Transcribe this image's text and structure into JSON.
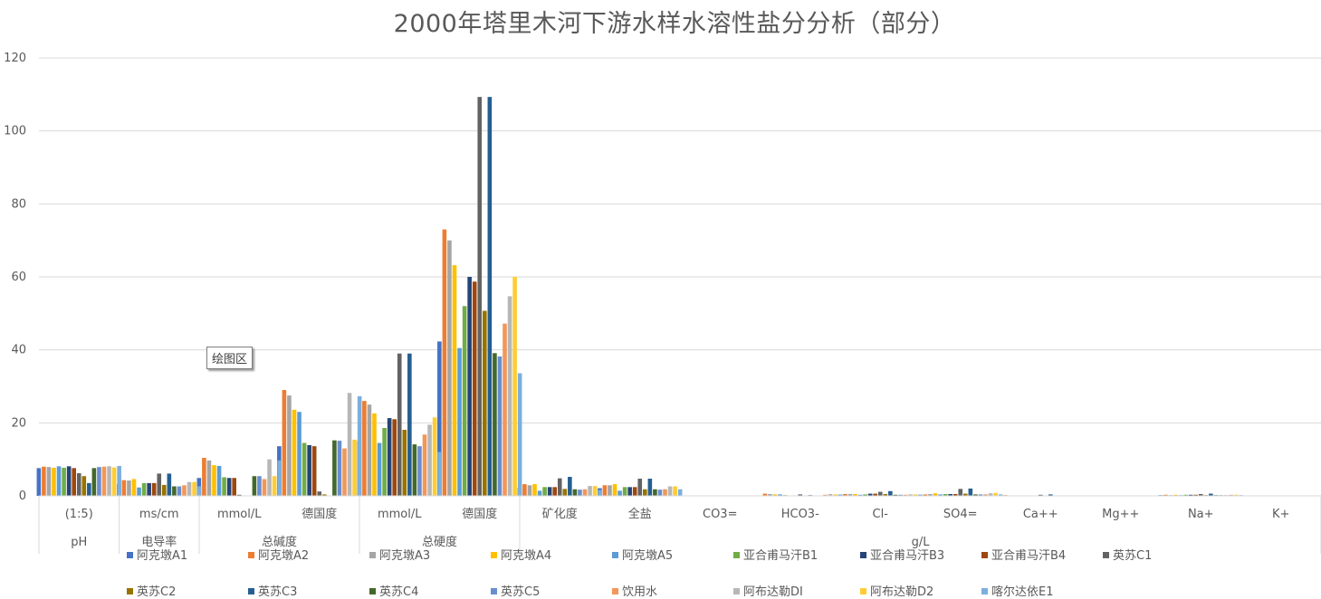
{
  "chart_data": {
    "type": "bar",
    "title": "2000年塔里木河下游水样水溶性盐分分析（部分）",
    "xlabel": "",
    "ylabel": "",
    "ylim": [
      0,
      120
    ],
    "yticks": [
      0,
      20,
      40,
      60,
      80,
      100,
      120
    ],
    "grid": true,
    "legend_position": "bottom",
    "categories": [
      {
        "sub": "(1:5)",
        "group": "pH"
      },
      {
        "sub": "ms/cm",
        "group": "电导率"
      },
      {
        "sub": "mmol/L",
        "group": "总碱度"
      },
      {
        "sub": "德国度",
        "group": "总碱度"
      },
      {
        "sub": "mmol/L",
        "group": "总硬度"
      },
      {
        "sub": "德国度",
        "group": "总硬度"
      },
      {
        "sub": "矿化度",
        "group": "g/L"
      },
      {
        "sub": "全盐",
        "group": "g/L"
      },
      {
        "sub": "CO3=",
        "group": "g/L"
      },
      {
        "sub": "HCO3-",
        "group": "g/L"
      },
      {
        "sub": "Cl-",
        "group": "g/L"
      },
      {
        "sub": "SO4=",
        "group": "g/L"
      },
      {
        "sub": "Ca++",
        "group": "g/L"
      },
      {
        "sub": "Mg++",
        "group": "g/L"
      },
      {
        "sub": "Na+",
        "group": "g/L"
      },
      {
        "sub": "K+",
        "group": "g/L"
      }
    ],
    "group_labels": [
      {
        "label": "pH",
        "start": 0,
        "end": 0
      },
      {
        "label": "电导率",
        "start": 1,
        "end": 1
      },
      {
        "label": "总碱度",
        "start": 2,
        "end": 3
      },
      {
        "label": "总硬度",
        "start": 4,
        "end": 5
      },
      {
        "label": "g/L",
        "start": 6,
        "end": 15
      }
    ],
    "series": [
      {
        "name": "阿克墩A1",
        "color": "#4472C4",
        "values": [
          7.6,
          3.2,
          4.9,
          13.6,
          15.0,
          42.3,
          2.2,
          2.1,
          0,
          0.1,
          0.3,
          0.3,
          0.1,
          0,
          0.2,
          0
        ]
      },
      {
        "name": "阿克墩A2",
        "color": "#ED7D31",
        "values": [
          8.0,
          4.3,
          10.4,
          29.0,
          26.0,
          73.0,
          3.2,
          2.9,
          0,
          0.6,
          0.5,
          0.4,
          0.2,
          0,
          0.3,
          0
        ]
      },
      {
        "name": "阿克墩A3",
        "color": "#A5A5A5",
        "values": [
          7.9,
          4.2,
          9.7,
          27.5,
          25.0,
          70.0,
          2.9,
          2.9,
          0,
          0.5,
          0.5,
          0.5,
          0.1,
          0,
          0.2,
          0
        ]
      },
      {
        "name": "阿克墩A4",
        "color": "#FFC000",
        "values": [
          7.7,
          4.6,
          8.4,
          23.6,
          22.6,
          63.2,
          3.2,
          3.2,
          0,
          0.4,
          0.5,
          0.7,
          0.1,
          0,
          0.3,
          0
        ]
      },
      {
        "name": "阿克墩A5",
        "color": "#5B9BD5",
        "values": [
          8.1,
          2.3,
          8.2,
          23.0,
          14.5,
          40.5,
          1.4,
          1.4,
          0,
          0.4,
          0.3,
          0.4,
          0.1,
          0,
          0.2,
          0
        ]
      },
      {
        "name": "亚合甫马汗B1",
        "color": "#70AD47",
        "values": [
          7.7,
          3.5,
          5.1,
          14.5,
          18.6,
          52.0,
          2.4,
          2.4,
          0,
          0.2,
          0.4,
          0.5,
          0.1,
          0,
          0.3,
          0
        ]
      },
      {
        "name": "亚合甫马汗B3",
        "color": "#264478",
        "values": [
          8.1,
          3.5,
          4.9,
          13.9,
          21.3,
          60.0,
          2.4,
          2.4,
          0,
          0.1,
          0.6,
          0.5,
          0.1,
          0,
          0.3,
          0
        ]
      },
      {
        "name": "亚合甫马汗B4",
        "color": "#9E480E",
        "values": [
          7.6,
          3.5,
          4.9,
          13.6,
          21.0,
          58.7,
          2.4,
          2.4,
          0,
          0.1,
          0.6,
          0.5,
          0.1,
          0,
          0.3,
          0
        ]
      },
      {
        "name": "英苏C1",
        "color": "#636363",
        "values": [
          6.2,
          6.1,
          0.3,
          1.2,
          39.0,
          109.3,
          4.8,
          4.7,
          0,
          0.4,
          1.1,
          1.9,
          0.3,
          0,
          0.5,
          0
        ]
      },
      {
        "name": "英苏C2",
        "color": "#997300",
        "values": [
          5.4,
          3.0,
          0.1,
          0.4,
          18.1,
          50.7,
          1.9,
          1.8,
          0,
          0.1,
          0.5,
          0.6,
          0.1,
          0,
          0.2,
          0
        ]
      },
      {
        "name": "英苏C3",
        "color": "#255E91",
        "values": [
          3.5,
          6.1,
          0,
          0,
          39.0,
          109.3,
          5.2,
          4.7,
          0,
          0.2,
          1.3,
          2.0,
          0.4,
          0,
          0.6,
          0
        ]
      },
      {
        "name": "英苏C4",
        "color": "#43682B",
        "values": [
          7.6,
          2.6,
          5.4,
          15.2,
          14.1,
          39.1,
          1.8,
          1.8,
          0,
          0.1,
          0.3,
          0.4,
          0.1,
          0,
          0.2,
          0
        ]
      },
      {
        "name": "英苏C5",
        "color": "#698ED0",
        "values": [
          7.9,
          2.6,
          5.4,
          15.1,
          13.6,
          38.2,
          1.7,
          1.7,
          0,
          0.1,
          0.3,
          0.4,
          0.1,
          0,
          0.2,
          0
        ]
      },
      {
        "name": "饮用水",
        "color": "#F1975A",
        "values": [
          8.0,
          2.9,
          4.6,
          13.0,
          16.8,
          47.2,
          1.8,
          1.8,
          0,
          0.3,
          0.3,
          0.4,
          0.1,
          0,
          0.2,
          0
        ]
      },
      {
        "name": "阿布达勒DⅠ",
        "color": "#B7B7B7",
        "values": [
          8.1,
          3.8,
          10.0,
          28.2,
          19.5,
          54.7,
          2.7,
          2.6,
          0,
          0.5,
          0.4,
          0.7,
          0.1,
          0,
          0.3,
          0
        ]
      },
      {
        "name": "阿布达勒D2",
        "color": "#FFCD33",
        "values": [
          7.8,
          3.8,
          5.4,
          15.4,
          21.5,
          60.0,
          2.7,
          2.6,
          0,
          0.4,
          0.4,
          0.8,
          0.1,
          0,
          0.3,
          0
        ]
      },
      {
        "name": "喀尔达依E1",
        "color": "#7CAFDD",
        "values": [
          8.2,
          2.6,
          9.7,
          27.3,
          12.0,
          33.6,
          1.6,
          1.8,
          0,
          0.4,
          0.3,
          0.4,
          0.1,
          0,
          0.2,
          0
        ]
      }
    ],
    "annotations": [
      "绘图区"
    ]
  },
  "ui": {
    "plot_area_tooltip": "绘图区"
  }
}
